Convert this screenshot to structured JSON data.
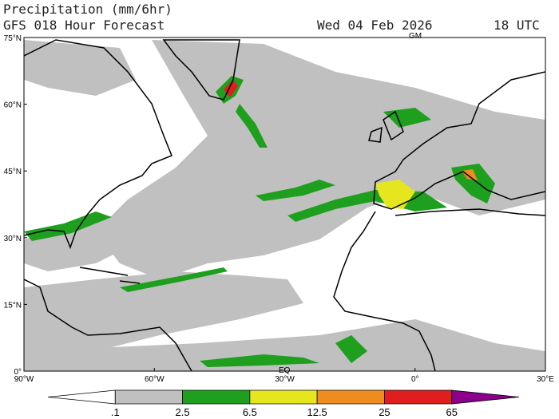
{
  "header": {
    "title": "Precipitation (mm/6hr)",
    "subtitle": "GFS 018 Hour Forecast",
    "date": "Wed 04 Feb 2026",
    "time": "18 UTC"
  },
  "lat_labels": [
    "75°N",
    "60°N",
    "45°N",
    "30°N",
    "15°N",
    "0°"
  ],
  "lon_labels": [
    "90°W",
    "60°W",
    "30°W",
    "0°",
    "30°E"
  ],
  "markers": {
    "prime_meridian": "GM",
    "equator": "EQ"
  },
  "colorbar": {
    "labels": [
      ".1",
      "2.5",
      "6.5",
      "12.5",
      "25",
      "65"
    ],
    "colors": [
      "#ffffff",
      "#c0c0c0",
      "#1ea01e",
      "#e6e61e",
      "#f08c1e",
      "#e01e1e",
      "#8c008c"
    ]
  }
}
